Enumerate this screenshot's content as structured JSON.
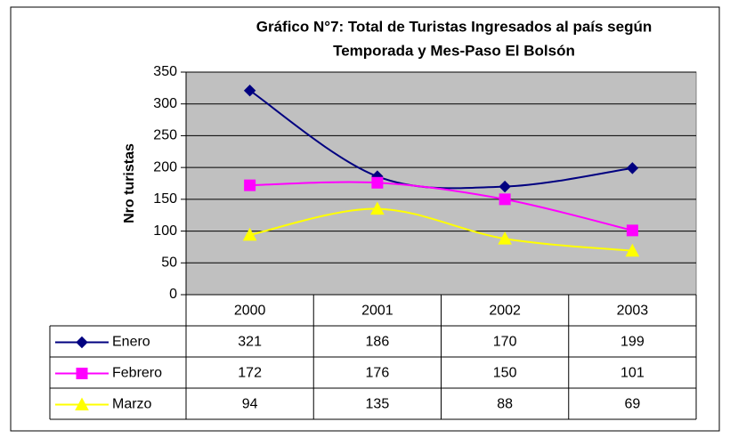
{
  "chart_data": {
    "type": "line",
    "title": [
      "Gráfico N°7: Total de Turistas Ingresados al país según",
      "Temporada y Mes-Paso El Bolsón"
    ],
    "y_label": "Nro turistas",
    "categories": [
      "2000",
      "2001",
      "2002",
      "2003"
    ],
    "series": [
      {
        "name": "Enero",
        "color": "#000080",
        "marker": "diamond",
        "values": [
          321,
          186,
          170,
          199
        ]
      },
      {
        "name": "Febrero",
        "color": "#FF00FF",
        "marker": "square",
        "values": [
          172,
          176,
          150,
          101
        ]
      },
      {
        "name": "Marzo",
        "color": "#FFFF00",
        "marker": "triangle",
        "values": [
          94,
          135,
          88,
          69
        ]
      }
    ],
    "ylim": [
      0,
      350
    ],
    "yticks": [
      0,
      50,
      100,
      150,
      200,
      250,
      300,
      350
    ],
    "grid": true,
    "plot_background": "#C0C0C0",
    "smooth": true,
    "data_table": true
  }
}
